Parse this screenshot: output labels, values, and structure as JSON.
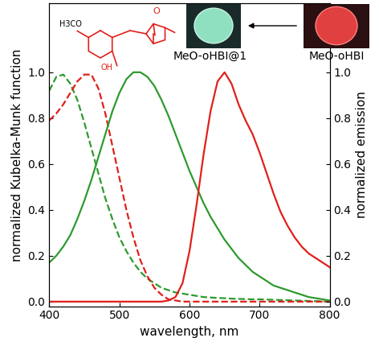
{
  "chart_data": {
    "type": "line",
    "x_label": "wavelength, nm",
    "y_label": "normalized Kubelka-Munk function",
    "y2_label": "normalized emission",
    "x": [
      400,
      410,
      420,
      430,
      440,
      450,
      460,
      470,
      480,
      490,
      500,
      510,
      520,
      530,
      540,
      550,
      560,
      570,
      580,
      590,
      600,
      610,
      620,
      630,
      640,
      650,
      660,
      670,
      680,
      690,
      700,
      710,
      720,
      730,
      740,
      750,
      760,
      770,
      780,
      790,
      800
    ],
    "xlim": [
      400,
      800
    ],
    "xticks": [
      400,
      500,
      600,
      700,
      800
    ],
    "ylim": [
      -0.02,
      1.3
    ],
    "yticks": [
      0.0,
      0.2,
      0.4,
      0.6,
      0.8,
      1.0
    ],
    "y2lim": [
      -0.02,
      1.3
    ],
    "y2ticks": [
      0.0,
      0.2,
      0.4,
      0.6,
      0.8,
      1.0
    ],
    "series": [
      {
        "color": "#2e9a2e",
        "line_style": "dashed",
        "axis": "y",
        "values": [
          0.92,
          0.98,
          0.99,
          0.95,
          0.88,
          0.78,
          0.67,
          0.56,
          0.45,
          0.36,
          0.28,
          0.22,
          0.17,
          0.13,
          0.1,
          0.08,
          0.06,
          0.05,
          0.04,
          0.035,
          0.03,
          0.025,
          0.02,
          0.018,
          0.016,
          0.015,
          0.013,
          0.012,
          0.011,
          0.01,
          0.01,
          0.009,
          0.008,
          0.007,
          0.006,
          0.005,
          0.004,
          0.003,
          0.002,
          0.001,
          0.0
        ]
      },
      {
        "color": "#e0201b",
        "line_style": "dashed",
        "axis": "y",
        "values": [
          0.79,
          0.82,
          0.86,
          0.91,
          0.96,
          0.99,
          0.99,
          0.93,
          0.82,
          0.68,
          0.54,
          0.4,
          0.28,
          0.18,
          0.11,
          0.06,
          0.03,
          0.01,
          0.005,
          0.0,
          0.0,
          0.0,
          0.0,
          0.0,
          0.0,
          0.0,
          0.0,
          0.0,
          0.0,
          0.0,
          0.0,
          0.0,
          0.0,
          0.0,
          0.0,
          0.0,
          0.0,
          0.0,
          0.0,
          0.0,
          0.0
        ]
      },
      {
        "color": "#2e9a2e",
        "line_style": "solid",
        "axis": "y2",
        "values": [
          0.17,
          0.2,
          0.24,
          0.29,
          0.36,
          0.44,
          0.53,
          0.63,
          0.73,
          0.83,
          0.91,
          0.97,
          1.0,
          1.0,
          0.98,
          0.94,
          0.88,
          0.81,
          0.73,
          0.65,
          0.57,
          0.5,
          0.43,
          0.37,
          0.32,
          0.27,
          0.23,
          0.19,
          0.16,
          0.13,
          0.11,
          0.09,
          0.07,
          0.06,
          0.05,
          0.04,
          0.03,
          0.02,
          0.015,
          0.01,
          0.005
        ]
      },
      {
        "color": "#e0201b",
        "line_style": "solid",
        "axis": "y2",
        "values": [
          0.0,
          0.0,
          0.0,
          0.0,
          0.0,
          0.0,
          0.0,
          0.0,
          0.0,
          0.0,
          0.0,
          0.0,
          0.0,
          0.0,
          0.0,
          0.0,
          0.0,
          0.005,
          0.02,
          0.08,
          0.22,
          0.42,
          0.64,
          0.83,
          0.96,
          1.0,
          0.95,
          0.86,
          0.79,
          0.73,
          0.65,
          0.56,
          0.47,
          0.39,
          0.33,
          0.28,
          0.24,
          0.21,
          0.19,
          0.17,
          0.15
        ]
      }
    ],
    "annotations": [
      "MeO-oHBI@1",
      "MeO-oHBI",
      "H3CO",
      "OH",
      "O"
    ]
  }
}
